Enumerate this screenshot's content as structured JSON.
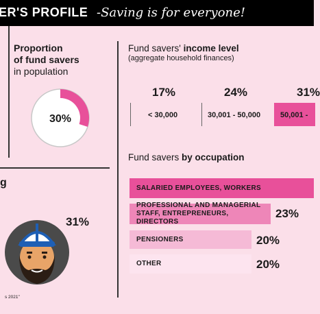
{
  "header": {
    "title_fragment": "ER'S PROFILE",
    "tagline": "-Saving is for everyone!"
  },
  "proportion": {
    "title_bold_line1": "Proportion",
    "title_bold_line2": "of fund savers",
    "title_line3": "in population",
    "value_label": "30%",
    "value_fraction": 0.3,
    "ring_color": "#e8509a"
  },
  "income": {
    "title_plain": "Fund savers' ",
    "title_bold": "income level",
    "subtitle": "(aggregate household finances)",
    "brackets": [
      {
        "percent": "17%",
        "range": "< 30,000"
      },
      {
        "percent": "24%",
        "range": "30,001 - 50,000"
      },
      {
        "percent": "31%",
        "range": "50,001 -"
      }
    ]
  },
  "occupation": {
    "title_plain": "Fund savers ",
    "title_bold": "by occupation",
    "items": [
      {
        "label": "SALARIED EMPLOYEES, WORKERS",
        "value": "",
        "color": "#e8509a"
      },
      {
        "label": "PROFESSIONAL AND MANAGERIAL STAFF, ENTREPRENEURS, DIRECTORS",
        "value": "23%",
        "color": "#ee86b8"
      },
      {
        "label": "PENSIONERS",
        "value": "20%",
        "color": "#f5bad6"
      },
      {
        "label": "OTHER",
        "value": "20%",
        "color": "#fde4ef"
      }
    ]
  },
  "left_lower": {
    "fragment": "g",
    "percent": "31%",
    "source_fragment": "s 2021\""
  },
  "colors": {
    "background": "#fbdfe9",
    "accent": "#e8509a",
    "header_bg": "#000000"
  }
}
